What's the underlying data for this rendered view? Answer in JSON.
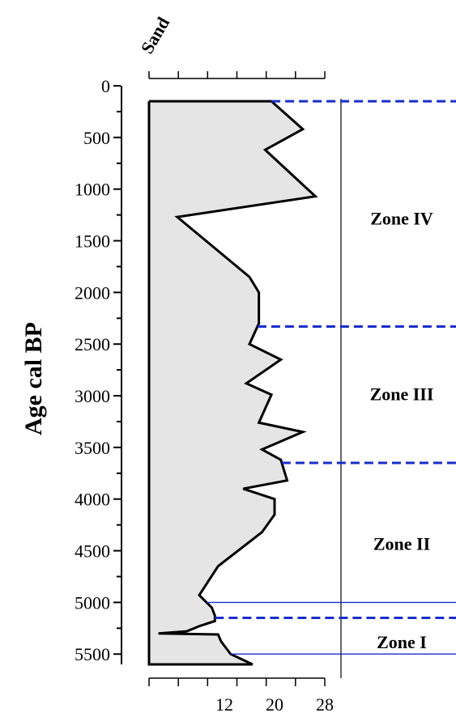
{
  "chart_data": {
    "type": "area",
    "series_title": "Sand",
    "ylabel": "Age cal BP",
    "ylim": [
      0,
      5600
    ],
    "y_inverted": true,
    "y_ticks": [
      0,
      500,
      1000,
      1500,
      2000,
      2500,
      3000,
      3500,
      4000,
      4500,
      5000,
      5500
    ],
    "y_minor_step": 250,
    "xlim": [
      0,
      28
    ],
    "x_ticks_labeled": [
      12,
      20,
      28
    ],
    "x_ticks": [
      0,
      4.67,
      9.33,
      14,
      18.67,
      23.33,
      28
    ],
    "fill_color": "#e5e5e5",
    "line_color": "#000000",
    "zone_line_color": "#1a2dc8",
    "series": [
      {
        "x": [
          19.5,
          24.5,
          18.5,
          26.5,
          4.5,
          16,
          17.5,
          17.5,
          16,
          21,
          15.5,
          19.5,
          17.5,
          24.5,
          18,
          21,
          22,
          15,
          20,
          20,
          18,
          11,
          8,
          10,
          10.5,
          10.5,
          8,
          6,
          1.5,
          11,
          11.5,
          13,
          16.5
        ],
        "y": [
          150,
          420,
          620,
          1070,
          1270,
          1850,
          2000,
          2300,
          2500,
          2650,
          2880,
          2990,
          3260,
          3350,
          3520,
          3620,
          3820,
          3900,
          4000,
          4150,
          4320,
          4650,
          4930,
          5050,
          5130,
          5180,
          5230,
          5280,
          5300,
          5310,
          5380,
          5500,
          5600
        ]
      }
    ],
    "zone_boundaries": [
      {
        "age": 150,
        "style": "dashed"
      },
      {
        "age": 2330,
        "style": "dashed"
      },
      {
        "age": 3650,
        "style": "dashed"
      },
      {
        "age": 5150,
        "style": "dashed"
      },
      {
        "age": 5000,
        "style": "solid"
      },
      {
        "age": 5500,
        "style": "solid"
      }
    ],
    "zones": [
      {
        "label": "Zone IV",
        "age": 1280
      },
      {
        "label": "Zone III",
        "age": 2980
      },
      {
        "label": "Zone II",
        "age": 4430
      },
      {
        "label": "Zone I",
        "age": 5380
      }
    ]
  }
}
